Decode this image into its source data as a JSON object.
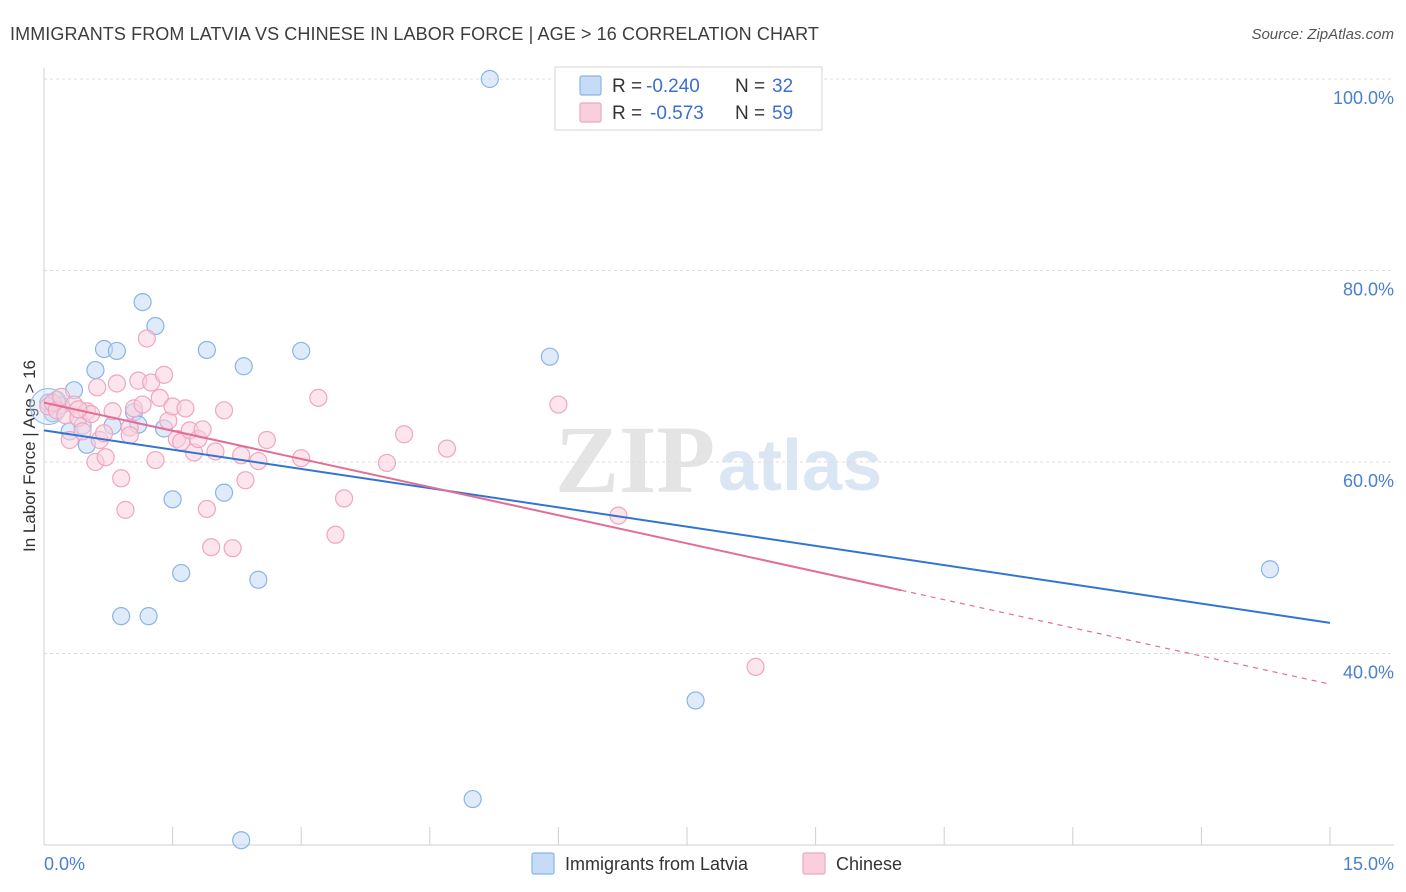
{
  "chart_data": {
    "type": "scatter",
    "title": "IMMIGRANTS FROM LATVIA VS CHINESE IN LABOR FORCE | AGE > 16 CORRELATION CHART",
    "source": "Source: ZipAtlas.com",
    "xlabel": "",
    "ylabel": "In Labor Force | Age > 16",
    "xlim": [
      0,
      15
    ],
    "ylim": [
      20,
      100
    ],
    "x_tick_labels": [
      "0.0%",
      "15.0%"
    ],
    "y_ticks": [
      40,
      60,
      80,
      100
    ],
    "y_tick_labels": [
      "40.0%",
      "60.0%",
      "80.0%",
      "100.0%"
    ],
    "watermark": {
      "zip": "ZIP",
      "atlas": "atlas"
    },
    "legend": {
      "rows": [
        {
          "r_label": "R = ",
          "r_value": "-0.240",
          "n_label": "N = ",
          "n_value": "32"
        },
        {
          "r_label": "R = ",
          "r_value": "-0.573",
          "n_label": "N = ",
          "n_value": "59"
        }
      ]
    },
    "series": [
      {
        "name": "Immigrants from Latvia",
        "color": "#8ab4e8",
        "fill": "#c6dbf5",
        "line_color": "#3274d3",
        "trend": {
          "x0": 0.0,
          "y0": 63.3,
          "x1": 15.0,
          "y1": 43.2
        },
        "points": [
          [
            0.05,
            66.2
          ],
          [
            0.1,
            65.1
          ],
          [
            0.15,
            66.5
          ],
          [
            0.2,
            65.9
          ],
          [
            0.3,
            63.2
          ],
          [
            0.35,
            67.5
          ],
          [
            0.45,
            63.8
          ],
          [
            0.5,
            61.8
          ],
          [
            0.6,
            69.6
          ],
          [
            0.7,
            71.8
          ],
          [
            0.8,
            63.8
          ],
          [
            0.85,
            71.6
          ],
          [
            0.9,
            43.9
          ],
          [
            1.05,
            65.2
          ],
          [
            1.1,
            63.9
          ],
          [
            1.15,
            76.7
          ],
          [
            1.22,
            43.9
          ],
          [
            1.3,
            74.2
          ],
          [
            1.4,
            63.5
          ],
          [
            1.5,
            56.1
          ],
          [
            1.6,
            48.4
          ],
          [
            1.9,
            71.7
          ],
          [
            2.1,
            56.8
          ],
          [
            2.3,
            20.5
          ],
          [
            2.33,
            70.0
          ],
          [
            2.5,
            47.7
          ],
          [
            3.0,
            71.6
          ],
          [
            5.0,
            24.8
          ],
          [
            5.2,
            100.0
          ],
          [
            5.9,
            71.0
          ],
          [
            7.6,
            35.1
          ],
          [
            14.3,
            48.8
          ]
        ]
      },
      {
        "name": "Chinese",
        "color": "#f0a6bf",
        "fill": "#f9cfdd",
        "line_color": "#e26d95",
        "trend": {
          "x0": 0.0,
          "y0": 66.2,
          "x1": 10.0,
          "y1": 46.6
        },
        "trend_dashed": {
          "x0": 10.0,
          "y0": 46.6,
          "x1": 15.0,
          "y1": 36.8
        },
        "points": [
          [
            0.05,
            65.8
          ],
          [
            0.1,
            66.2
          ],
          [
            0.15,
            65.4
          ],
          [
            0.2,
            66.8
          ],
          [
            0.25,
            64.9
          ],
          [
            0.3,
            62.3
          ],
          [
            0.35,
            66.0
          ],
          [
            0.4,
            64.6
          ],
          [
            0.45,
            63.2
          ],
          [
            0.5,
            65.3
          ],
          [
            0.55,
            65.0
          ],
          [
            0.6,
            60.0
          ],
          [
            0.62,
            67.8
          ],
          [
            0.65,
            62.3
          ],
          [
            0.7,
            63.0
          ],
          [
            0.72,
            60.5
          ],
          [
            0.8,
            65.3
          ],
          [
            0.85,
            68.2
          ],
          [
            0.9,
            58.3
          ],
          [
            0.95,
            55.0
          ],
          [
            1.0,
            63.6
          ],
          [
            1.05,
            65.6
          ],
          [
            1.1,
            68.5
          ],
          [
            1.15,
            66.0
          ],
          [
            1.2,
            72.9
          ],
          [
            1.25,
            68.3
          ],
          [
            1.3,
            60.2
          ],
          [
            1.35,
            66.7
          ],
          [
            1.4,
            69.1
          ],
          [
            1.45,
            64.3
          ],
          [
            1.5,
            65.8
          ],
          [
            1.55,
            62.4
          ],
          [
            1.6,
            62.1
          ],
          [
            1.65,
            65.6
          ],
          [
            1.7,
            63.3
          ],
          [
            1.75,
            61.0
          ],
          [
            1.8,
            62.4
          ],
          [
            1.85,
            63.4
          ],
          [
            1.9,
            55.1
          ],
          [
            1.95,
            51.1
          ],
          [
            2.0,
            61.1
          ],
          [
            2.1,
            65.4
          ],
          [
            2.2,
            51.0
          ],
          [
            2.3,
            60.7
          ],
          [
            2.35,
            58.1
          ],
          [
            2.5,
            60.1
          ],
          [
            2.6,
            62.3
          ],
          [
            3.0,
            60.4
          ],
          [
            3.2,
            66.7
          ],
          [
            3.4,
            52.4
          ],
          [
            3.5,
            56.2
          ],
          [
            4.0,
            59.9
          ],
          [
            4.2,
            62.9
          ],
          [
            4.7,
            61.4
          ],
          [
            6.0,
            66.0
          ],
          [
            6.7,
            54.4
          ],
          [
            8.3,
            38.6
          ],
          [
            0.4,
            65.5
          ],
          [
            1.0,
            62.8
          ]
        ]
      }
    ]
  }
}
